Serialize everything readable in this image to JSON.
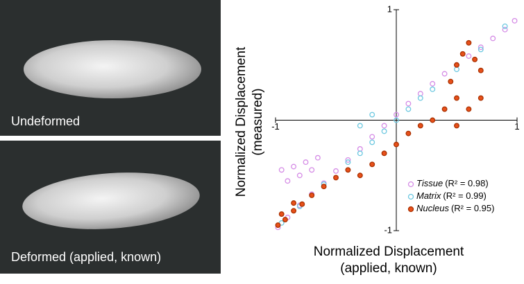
{
  "panels": [
    {
      "label": "Undeformed"
    },
    {
      "label": "Deformed (applied, known)"
    }
  ],
  "chart_data": {
    "type": "scatter",
    "xlabel": [
      "Normalized Displacement",
      "(applied, known)"
    ],
    "ylabel": [
      "Normalized Displacement",
      "(measured)"
    ],
    "xlim": [
      -1,
      1
    ],
    "ylim": [
      -1,
      1
    ],
    "xticks": [
      -1,
      1
    ],
    "yticks": [
      -1,
      1
    ],
    "series": [
      {
        "name": "Tissue",
        "r2": "(R² = 0.98)",
        "color": "#d58ce6",
        "filled": false,
        "x": [
          -0.98,
          -0.9,
          -0.8,
          -0.7,
          -0.6,
          -0.5,
          -0.4,
          -0.3,
          -0.2,
          -0.1,
          0,
          0.1,
          0.2,
          0.3,
          0.4,
          0.5,
          0.6,
          0.7,
          0.8,
          0.9,
          0.98,
          -0.95,
          -0.85,
          -0.75,
          -0.65,
          -0.9,
          -0.8,
          -0.7
        ],
        "values": [
          -0.97,
          -0.88,
          -0.77,
          -0.67,
          -0.57,
          -0.46,
          -0.36,
          -0.26,
          -0.15,
          -0.05,
          0.05,
          0.15,
          0.24,
          0.33,
          0.42,
          0.5,
          0.58,
          0.66,
          0.74,
          0.82,
          0.9,
          -0.45,
          -0.42,
          -0.38,
          -0.34,
          -0.55,
          -0.5,
          -0.45
        ]
      },
      {
        "name": "Matrix",
        "r2": "(R² = 0.99)",
        "color": "#6cc8e0",
        "filled": false,
        "x": [
          -0.95,
          -0.8,
          -0.6,
          -0.4,
          -0.3,
          -0.2,
          -0.1,
          0,
          0.1,
          0.2,
          0.3,
          0.5,
          0.7,
          0.9,
          -0.3,
          -0.2
        ],
        "values": [
          -0.93,
          -0.78,
          -0.58,
          -0.38,
          -0.3,
          -0.2,
          -0.1,
          0.0,
          0.1,
          0.2,
          0.28,
          0.46,
          0.64,
          0.85,
          -0.05,
          0.05
        ]
      },
      {
        "name": "Nucleus",
        "r2": "(R² = 0.95)",
        "color": "#e8501a",
        "filled": true,
        "x": [
          -0.98,
          -0.92,
          -0.85,
          -0.78,
          -0.7,
          -0.6,
          -0.5,
          -0.4,
          -0.3,
          -0.2,
          -0.1,
          0,
          0.1,
          0.2,
          0.3,
          0.4,
          0.5,
          0.45,
          0.5,
          0.55,
          0.6,
          0.65,
          0.7,
          0.5,
          0.6,
          0.7,
          -0.95,
          -0.85
        ],
        "values": [
          -0.95,
          -0.9,
          -0.82,
          -0.76,
          -0.68,
          -0.6,
          -0.52,
          -0.45,
          -0.5,
          -0.4,
          -0.3,
          -0.22,
          -0.12,
          -0.05,
          0.0,
          0.1,
          0.2,
          0.35,
          0.5,
          0.6,
          0.7,
          0.55,
          0.45,
          -0.05,
          0.1,
          0.2,
          -0.85,
          -0.75
        ]
      }
    ]
  }
}
